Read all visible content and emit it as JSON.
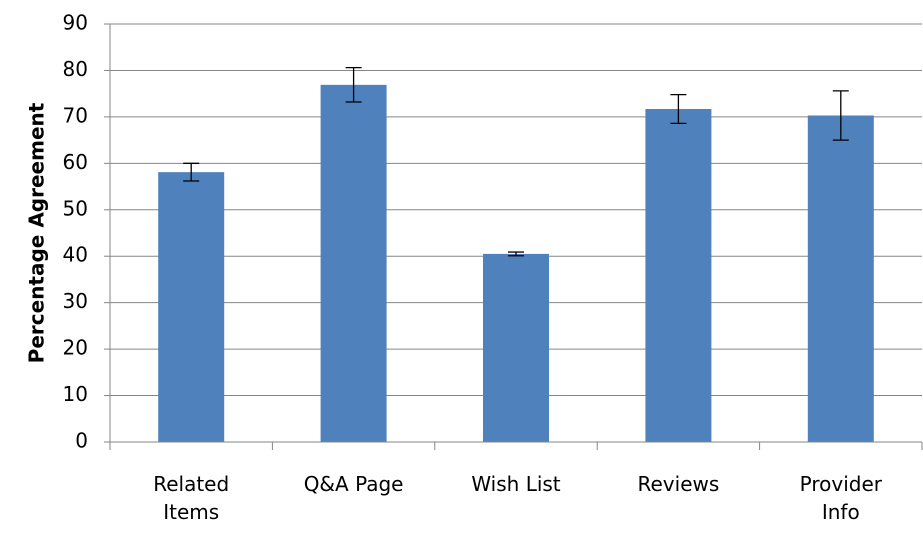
{
  "chart_data": {
    "type": "bar",
    "ylabel": "Percentage Agreement",
    "categories": [
      "Related Items",
      "Q&A Page",
      "Wish List",
      "Reviews",
      "Provider Info"
    ],
    "values": [
      58.1,
      76.9,
      40.5,
      71.7,
      70.3
    ],
    "errors": [
      1.9,
      3.7,
      0.4,
      3.1,
      5.3
    ],
    "color": "#4f81bd",
    "ylim": [
      0,
      90
    ],
    "yticks": [
      0,
      10,
      20,
      30,
      40,
      50,
      60,
      70,
      80,
      90
    ],
    "grid": true
  }
}
